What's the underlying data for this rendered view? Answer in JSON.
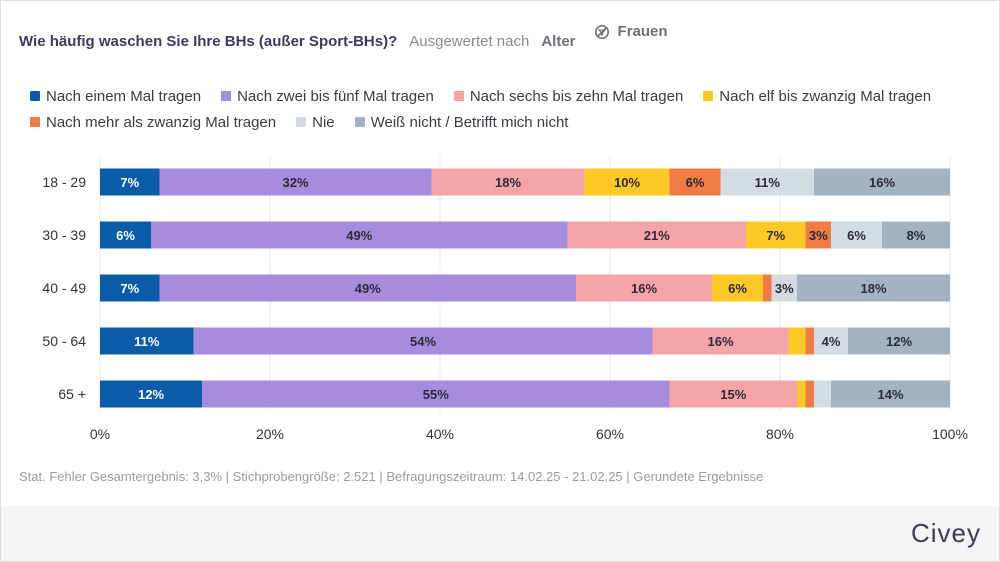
{
  "header": {
    "title": "Wie häufig waschen Sie Ihre BHs (außer Sport-BHs)?",
    "evaluated_by": "Ausgewertet nach",
    "segment": "Alter",
    "filter_label": "Frauen",
    "filter_icon": "filter-off-icon"
  },
  "legend": [
    {
      "label": "Nach einem Mal tragen",
      "color": "#0a5ca8"
    },
    {
      "label": "Nach zwei bis fünf Mal tragen",
      "color": "#a68cdc"
    },
    {
      "label": "Nach sechs bis zehn Mal tragen",
      "color": "#f7a4a8"
    },
    {
      "label": "Nach elf bis zwanzig Mal tragen",
      "color": "#ffc826"
    },
    {
      "label": "Nach mehr als zwanzig Mal tragen",
      "color": "#f07c45"
    },
    {
      "label": "Nie",
      "color": "#d4dbe2"
    },
    {
      "label": "Weiß nicht / Betrifft mich nicht",
      "color": "#a2b3c1"
    }
  ],
  "chart_data": {
    "type": "bar",
    "orientation": "horizontal",
    "stacked": true,
    "categories": [
      "18 - 29",
      "30 - 39",
      "40 - 49",
      "50 - 64",
      "65 +"
    ],
    "series": [
      {
        "name": "Nach einem Mal tragen",
        "color": "#0a5ca8",
        "label_color": "#ffffff",
        "values": [
          7,
          6,
          7,
          11,
          12
        ],
        "labels": [
          "7%",
          "6%",
          "7%",
          "11%",
          "12%"
        ]
      },
      {
        "name": "Nach zwei bis fünf Mal tragen",
        "color": "#a68cdc",
        "label_color": "#2b2b3a",
        "values": [
          32,
          49,
          49,
          54,
          55
        ],
        "labels": [
          "32%",
          "49%",
          "49%",
          "54%",
          "55%"
        ]
      },
      {
        "name": "Nach sechs bis zehn Mal tragen",
        "color": "#f7a4a8",
        "label_color": "#2b2b3a",
        "values": [
          18,
          21,
          16,
          16,
          15
        ],
        "labels": [
          "18%",
          "21%",
          "16%",
          "16%",
          "15%"
        ]
      },
      {
        "name": "Nach elf bis zwanzig Mal tragen",
        "color": "#ffc826",
        "label_color": "#2b2b3a",
        "values": [
          10,
          7,
          6,
          2,
          1
        ],
        "labels": [
          "10%",
          "7%",
          "6%",
          "",
          ""
        ]
      },
      {
        "name": "Nach mehr als zwanzig Mal tragen",
        "color": "#f07c45",
        "label_color": "#2b2b3a",
        "values": [
          6,
          3,
          1,
          1,
          1
        ],
        "labels": [
          "6%",
          "3%",
          "",
          "",
          ""
        ]
      },
      {
        "name": "Nie",
        "color": "#d4dbe2",
        "label_color": "#2b2b3a",
        "values": [
          11,
          6,
          3,
          4,
          2
        ],
        "labels": [
          "11%",
          "6%",
          "3%",
          "4%",
          ""
        ]
      },
      {
        "name": "Weiß nicht / Betrifft mich nicht",
        "color": "#a2b3c1",
        "label_color": "#2b2b3a",
        "values": [
          16,
          8,
          18,
          12,
          14
        ],
        "labels": [
          "16%",
          "8%",
          "18%",
          "12%",
          "14%"
        ]
      }
    ],
    "x_ticks": [
      "0%",
      "20%",
      "40%",
      "60%",
      "80%",
      "100%"
    ],
    "xlim": [
      0,
      100
    ],
    "grid": true,
    "legend_position": "top"
  },
  "footnote": "Stat. Fehler Gesamtergebnis: 3,3% | Stichprobengröße: 2.521 | Befragungszeitraum: 14.02.25 - 21.02.25 | Gerundete Ergebnisse",
  "brand": {
    "logo_text": "Civey",
    "color": "#3f3a5c"
  }
}
